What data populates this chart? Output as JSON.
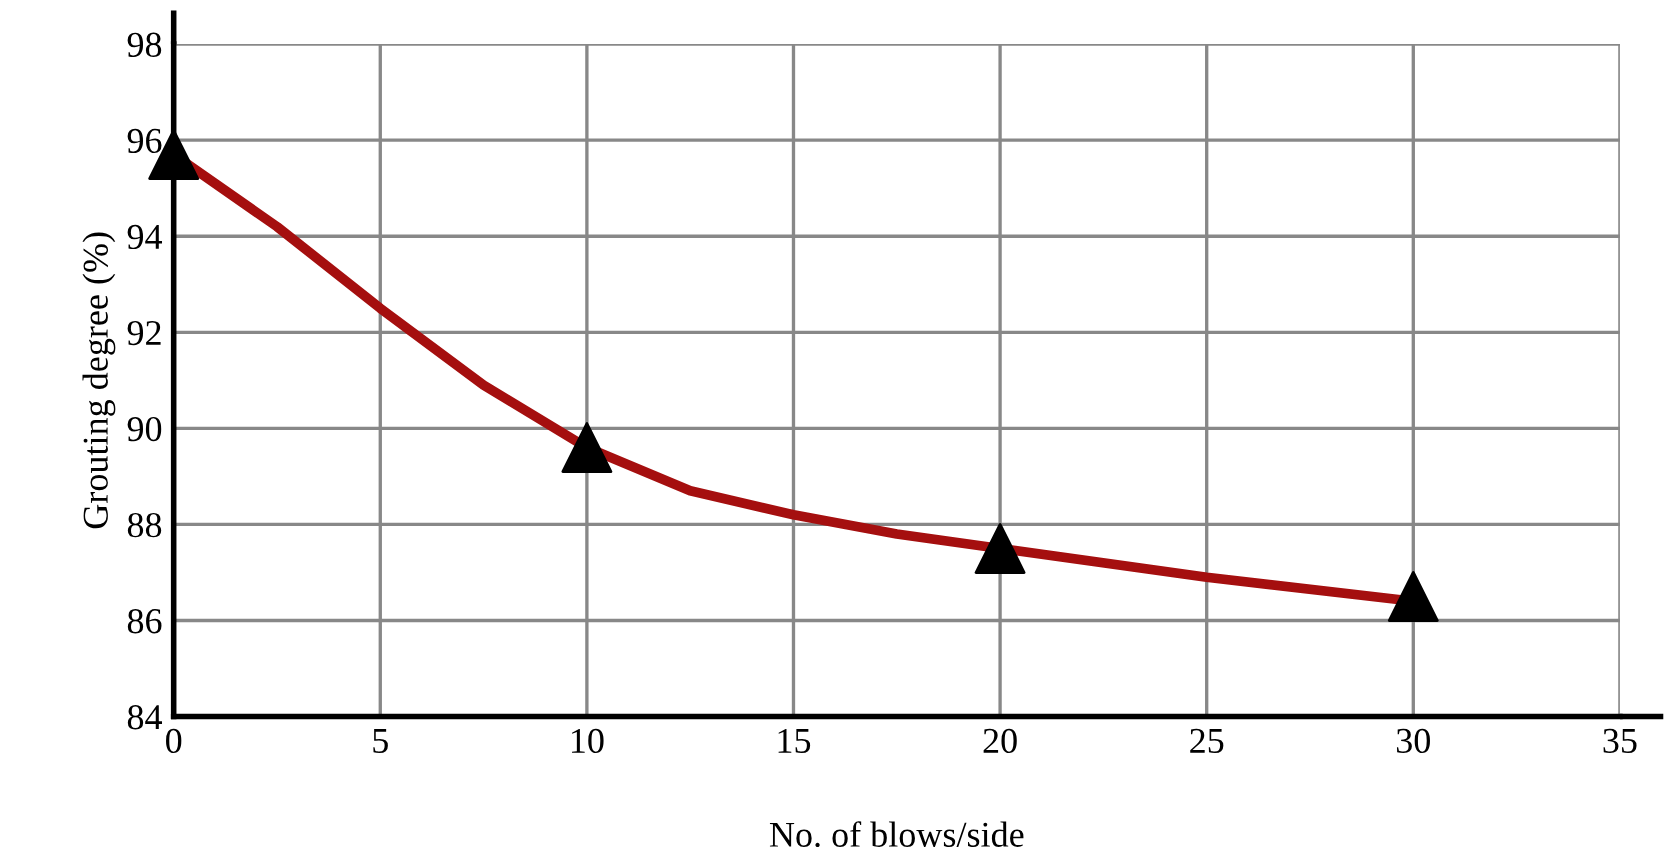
{
  "chart_data": {
    "type": "line",
    "xlabel": "No. of blows/side",
    "ylabel": "Grouting degree (%)",
    "x": [
      0,
      10,
      20,
      30
    ],
    "series": [
      {
        "color": "#a50f0f",
        "x": [
          0,
          2.5,
          5,
          7.5,
          10,
          12.5,
          15,
          17.5,
          20,
          25,
          30
        ],
        "values": [
          95.7,
          94.2,
          92.5,
          90.9,
          89.6,
          88.7,
          88.2,
          87.8,
          87.5,
          86.9,
          86.4
        ],
        "marker": "none"
      },
      {
        "type": "scatter",
        "color": "#000000",
        "values": [
          95.7,
          89.6,
          87.5,
          86.5
        ],
        "marker": "triangle"
      }
    ],
    "xlim": [
      0,
      35
    ],
    "xticks": [
      0,
      5,
      10,
      15,
      20,
      25,
      30,
      35
    ],
    "ylim": [
      84,
      98
    ],
    "yticks": [
      84,
      86,
      88,
      90,
      92,
      94,
      96,
      98
    ],
    "grid": true,
    "legend": false
  }
}
